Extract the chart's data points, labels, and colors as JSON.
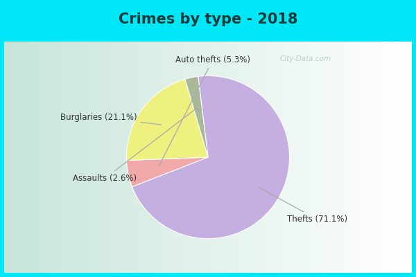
{
  "title": "Crimes by type - 2018",
  "slices": [
    {
      "label": "Thefts (71.1%)",
      "value": 71.1,
      "color": "#c5aee0"
    },
    {
      "label": "Auto thefts (5.3%)",
      "value": 5.3,
      "color": "#f0a8a8"
    },
    {
      "label": "Burglaries (21.1%)",
      "value": 21.1,
      "color": "#eef080"
    },
    {
      "label": "Assaults (2.6%)",
      "value": 2.6,
      "color": "#a8b898"
    }
  ],
  "bg_outer": "#00e8f8",
  "title_fontsize": 15,
  "label_fontsize": 8.5,
  "watermark": "City-Data.com",
  "start_angle": 97,
  "label_configs": [
    {
      "label": "Thefts (71.1%)",
      "xt": 0.8,
      "yt": -0.72,
      "ha": "left",
      "r_tip": 0.62
    },
    {
      "label": "Auto thefts (5.3%)",
      "xt": 0.0,
      "yt": 1.0,
      "ha": "center",
      "r_tip": 0.55
    },
    {
      "label": "Burglaries (21.1%)",
      "xt": -0.82,
      "yt": 0.38,
      "ha": "right",
      "r_tip": 0.6
    },
    {
      "label": "Assaults (2.6%)",
      "xt": -0.82,
      "yt": -0.28,
      "ha": "right",
      "r_tip": 0.55
    }
  ]
}
